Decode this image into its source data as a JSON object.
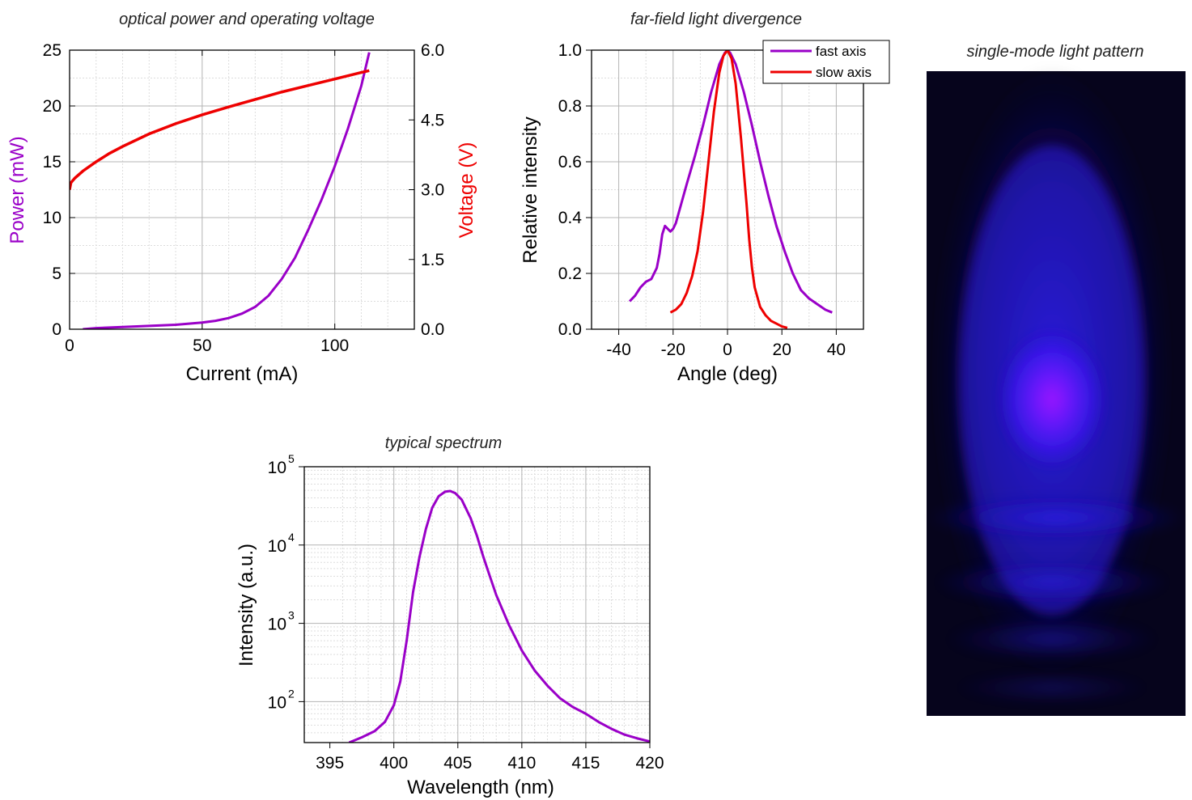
{
  "chart_data": [
    {
      "id": "power_voltage",
      "type": "line",
      "title": "optical power and operating voltage",
      "xlabel": "Current (mA)",
      "ylabel": "Power (mW)",
      "y2label": "Voltage (V)",
      "xlim": [
        0,
        130
      ],
      "ylim": [
        0,
        25
      ],
      "y2lim": [
        0,
        6
      ],
      "xticks": [
        "0",
        "50",
        "100"
      ],
      "yticks": [
        "0",
        "5",
        "10",
        "15",
        "20",
        "25"
      ],
      "y2ticks": [
        "0.0",
        "1.5",
        "3.0",
        "4.5",
        "6.0"
      ],
      "grid": true,
      "colors": {
        "power": "#9a00c8",
        "voltage": "#ee0000"
      },
      "series": [
        {
          "name": "Power (mW)",
          "axis": "left",
          "color": "#9a00c8",
          "x": [
            5,
            10,
            20,
            30,
            40,
            50,
            55,
            60,
            65,
            70,
            75,
            80,
            85,
            90,
            95,
            100,
            105,
            110,
            113
          ],
          "y": [
            0.0,
            0.1,
            0.2,
            0.3,
            0.4,
            0.6,
            0.75,
            1.0,
            1.4,
            2.0,
            3.0,
            4.5,
            6.4,
            8.9,
            11.6,
            14.6,
            18.0,
            21.8,
            24.8
          ]
        },
        {
          "name": "Voltage (V)",
          "axis": "right",
          "color": "#ee0000",
          "x": [
            0,
            0.5,
            2,
            5,
            10,
            15,
            20,
            30,
            40,
            50,
            60,
            70,
            80,
            90,
            100,
            110,
            113
          ],
          "y": [
            3.0,
            3.15,
            3.25,
            3.4,
            3.6,
            3.78,
            3.93,
            4.2,
            4.42,
            4.61,
            4.78,
            4.94,
            5.1,
            5.24,
            5.38,
            5.52,
            5.56
          ]
        }
      ]
    },
    {
      "id": "far_field",
      "type": "line",
      "title": "far-field light divergence",
      "xlabel": "Angle (deg)",
      "ylabel": "Relative intensity",
      "xlim": [
        -50,
        50
      ],
      "ylim": [
        0,
        1
      ],
      "xticks": [
        "-40",
        "-20",
        "0",
        "20",
        "40"
      ],
      "yticks": [
        "0.0",
        "0.2",
        "0.4",
        "0.6",
        "0.8",
        "1.0"
      ],
      "grid": true,
      "legend": "top-right",
      "series": [
        {
          "name": "fast axis",
          "color": "#9a00c8",
          "x": [
            -36,
            -34,
            -32,
            -30,
            -28,
            -26,
            -25,
            -24,
            -23,
            -22,
            -21,
            -20,
            -19,
            -17,
            -15,
            -12,
            -9,
            -6,
            -3,
            -1,
            0,
            1,
            3,
            6,
            9,
            12,
            15,
            18,
            21,
            24,
            27,
            30,
            33,
            36,
            38.5
          ],
          "y": [
            0.1,
            0.12,
            0.15,
            0.17,
            0.18,
            0.22,
            0.27,
            0.34,
            0.37,
            0.36,
            0.35,
            0.36,
            0.38,
            0.45,
            0.52,
            0.62,
            0.73,
            0.85,
            0.95,
            0.99,
            1.0,
            0.99,
            0.95,
            0.85,
            0.73,
            0.6,
            0.48,
            0.37,
            0.28,
            0.2,
            0.14,
            0.11,
            0.09,
            0.07,
            0.06
          ]
        },
        {
          "name": "slow axis",
          "color": "#ee0000",
          "x": [
            -21,
            -19,
            -17,
            -15,
            -13,
            -11,
            -9,
            -7,
            -5,
            -3,
            -1.5,
            0,
            1.5,
            3,
            5,
            7,
            8,
            9,
            10,
            12,
            14,
            16,
            18,
            20,
            22
          ],
          "y": [
            0.06,
            0.07,
            0.09,
            0.13,
            0.19,
            0.28,
            0.42,
            0.6,
            0.78,
            0.92,
            0.98,
            1.0,
            0.97,
            0.88,
            0.68,
            0.45,
            0.32,
            0.22,
            0.15,
            0.08,
            0.05,
            0.03,
            0.02,
            0.01,
            0.005
          ]
        }
      ]
    },
    {
      "id": "spectrum",
      "type": "line",
      "title": "typical spectrum",
      "xlabel": "Wavelength (nm)",
      "ylabel": "Intensity (a.u.)",
      "xlim": [
        393,
        420
      ],
      "ylim": [
        30,
        100000
      ],
      "yscale": "log",
      "xticks": [
        "395",
        "400",
        "405",
        "410",
        "415",
        "420"
      ],
      "yticks_base": "10",
      "yticks_exp": [
        "2",
        "3",
        "4",
        "5"
      ],
      "grid": true,
      "series": [
        {
          "name": "",
          "color": "#9a00c8",
          "x": [
            396.5,
            397.5,
            398.5,
            399.3,
            400.0,
            400.5,
            401.0,
            401.5,
            402.0,
            402.5,
            403.0,
            403.5,
            404.0,
            404.4,
            404.8,
            405.3,
            406.0,
            406.5,
            407.0,
            407.5,
            408.0,
            409.0,
            410.0,
            411.0,
            412.0,
            413.0,
            414.0,
            415.0,
            416.0,
            417.0,
            418.0,
            419.0,
            420.0
          ],
          "y": [
            30,
            35,
            42,
            55,
            90,
            180,
            600,
            2500,
            7000,
            16000,
            30000,
            42000,
            48000,
            49000,
            46000,
            38000,
            22000,
            13000,
            7000,
            4000,
            2300,
            950,
            450,
            250,
            160,
            110,
            85,
            70,
            55,
            45,
            38,
            34,
            31
          ]
        }
      ]
    }
  ],
  "image_panel": {
    "title": "single-mode light pattern"
  }
}
